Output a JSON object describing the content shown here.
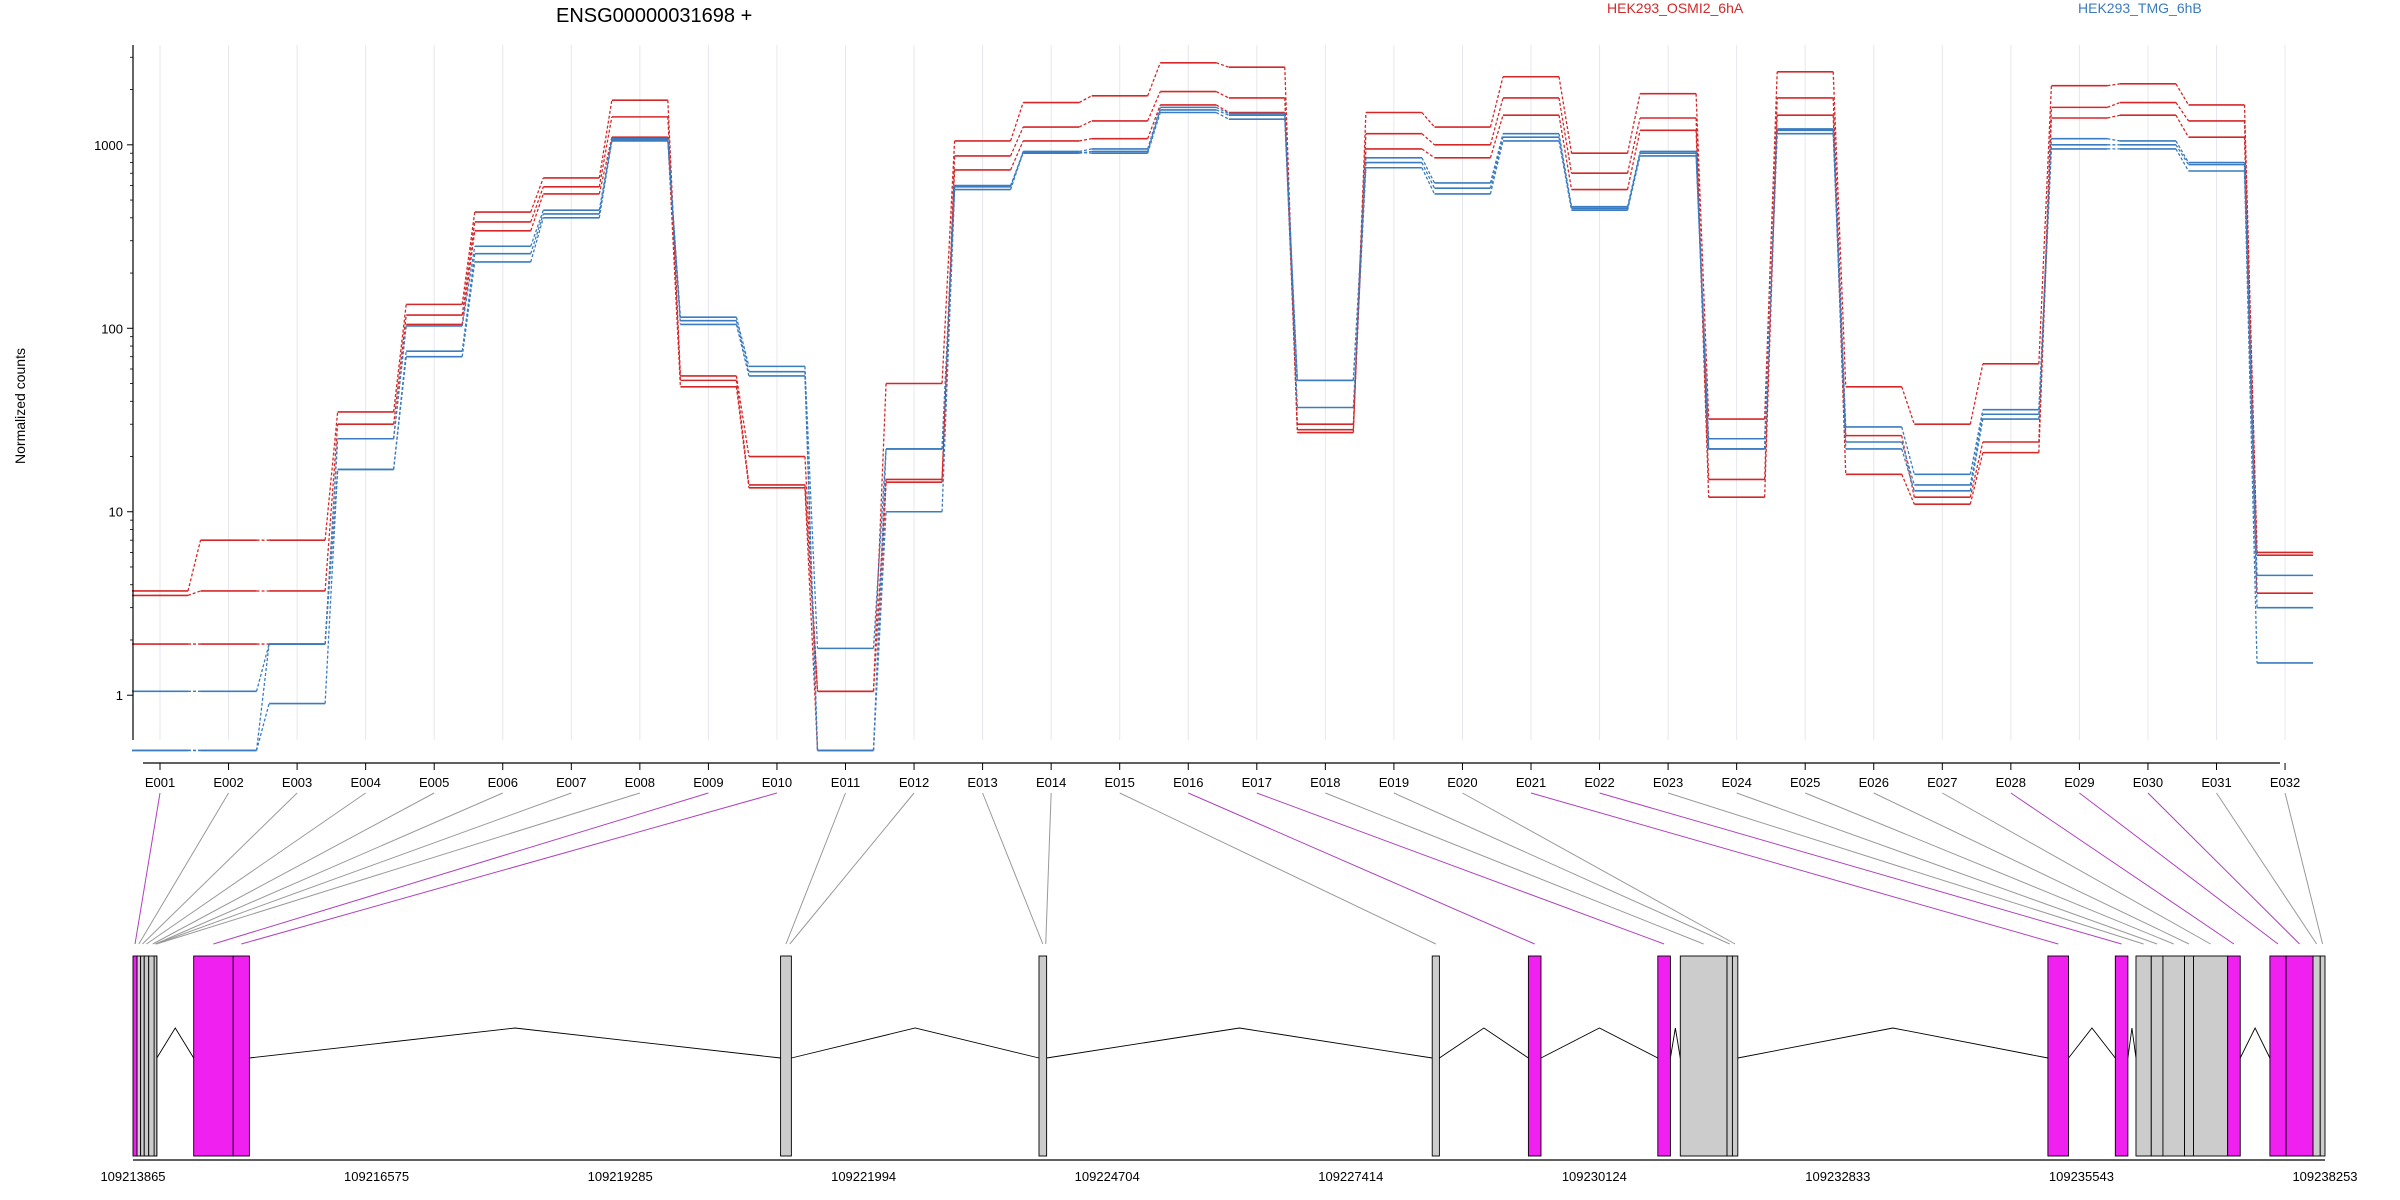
{
  "chart_data": {
    "type": "line",
    "title": "ENSG00000031698 +",
    "ylabel": "Normalized counts",
    "yscale": "log",
    "ylim": [
      0.5,
      3500
    ],
    "yticks": [
      "1",
      "10",
      "100",
      "1000"
    ],
    "ytick_values": [
      1,
      10,
      100,
      1000
    ],
    "legend_placement": "top",
    "categories": [
      "E001",
      "E002",
      "E003",
      "E004",
      "E005",
      "E006",
      "E007",
      "E008",
      "E009",
      "E010",
      "E011",
      "E012",
      "E013",
      "E014",
      "E015",
      "E016",
      "E017",
      "E018",
      "E019",
      "E020",
      "E021",
      "E022",
      "E023",
      "E024",
      "E025",
      "E026",
      "E027",
      "E028",
      "E029",
      "E030",
      "E031",
      "E032"
    ],
    "groups": [
      {
        "name": "HEK293_OSMI2_6hA",
        "color": "#d62728"
      },
      {
        "name": "HEK293_TMG_6hB",
        "color": "#3a7cbf"
      }
    ],
    "series": [
      {
        "group": 0,
        "values": [
          3.7,
          7,
          7,
          35,
          135,
          430,
          660,
          1750,
          55,
          20,
          1.05,
          50,
          1050,
          1700,
          1850,
          2800,
          2650,
          27,
          1500,
          1250,
          2350,
          900,
          1900,
          32,
          2500,
          48,
          30,
          64,
          2100,
          2150,
          1650,
          6.0
        ]
      },
      {
        "group": 0,
        "values": [
          3.5,
          3.7,
          3.7,
          30,
          118,
          380,
          590,
          1420,
          52,
          14,
          1.05,
          15,
          870,
          1250,
          1350,
          1950,
          1800,
          28,
          1150,
          1000,
          1800,
          700,
          1400,
          15,
          1800,
          26,
          12,
          24,
          1600,
          1700,
          1350,
          5.8
        ]
      },
      {
        "group": 0,
        "values": [
          1.9,
          1.9,
          1.9,
          25,
          105,
          340,
          540,
          1100,
          48,
          13.5,
          0.5,
          14.5,
          730,
          1050,
          1080,
          1650,
          1500,
          30,
          950,
          850,
          1450,
          570,
          1200,
          12,
          1450,
          16,
          11,
          21,
          1400,
          1450,
          1100,
          3.6
        ]
      },
      {
        "group": 1,
        "values": [
          1.05,
          1.05,
          1.9,
          17,
          70,
          230,
          400,
          1050,
          115,
          62,
          1.8,
          22,
          600,
          900,
          920,
          1550,
          1450,
          52,
          850,
          620,
          1150,
          460,
          920,
          25,
          1220,
          29,
          16,
          36,
          1080,
          1050,
          800,
          4.5
        ]
      },
      {
        "group": 1,
        "values": [
          0.5,
          0.5,
          0.9,
          17,
          75,
          255,
          420,
          1060,
          110,
          58,
          0.5,
          22,
          590,
          920,
          950,
          1600,
          1480,
          52,
          800,
          580,
          1100,
          450,
          900,
          22,
          1200,
          24,
          14,
          34,
          1000,
          1000,
          780,
          3.0
        ]
      },
      {
        "group": 1,
        "values": [
          0.5,
          0.5,
          1.9,
          25,
          103,
          280,
          440,
          1080,
          105,
          55,
          0.5,
          10,
          570,
          910,
          900,
          1500,
          1380,
          37,
          750,
          540,
          1050,
          440,
          870,
          22,
          1150,
          22,
          13,
          32,
          950,
          950,
          720,
          1.5
        ]
      }
    ],
    "gene_model": {
      "coord_labels": [
        "109213865",
        "109216575",
        "109219285",
        "109221994",
        "109224704",
        "109227414",
        "109230124",
        "109232833",
        "109235543",
        "109238253"
      ],
      "coord_values": [
        109213865,
        109216575,
        109219285,
        109221994,
        109224704,
        109227414,
        109230124,
        109232833,
        109235543,
        109238253
      ],
      "highlight_color": "#f020f0",
      "exon_color": "#cccccc",
      "exons": [
        {
          "start": 109213865,
          "end": 109213910,
          "highlight": true
        },
        {
          "start": 109213910,
          "end": 109213950,
          "highlight": false
        },
        {
          "start": 109213950,
          "end": 109213990,
          "highlight": false
        },
        {
          "start": 109213990,
          "end": 109214040,
          "highlight": false
        },
        {
          "start": 109214040,
          "end": 109214130,
          "highlight": false
        },
        {
          "start": 109214130,
          "end": 109214100,
          "highlight": false
        },
        {
          "start": 109214100,
          "end": 109214130,
          "highlight": false
        },
        {
          "start": 109214130,
          "end": 109214123,
          "highlight": false
        },
        {
          "start": 109214540,
          "end": 109214980,
          "highlight": true
        },
        {
          "start": 109214980,
          "end": 109215160,
          "highlight": true
        },
        {
          "start": 109221070,
          "end": 109221190,
          "highlight": false
        },
        {
          "start": 109221190,
          "end": 109221155,
          "highlight": false
        },
        {
          "start": 109223945,
          "end": 109224030,
          "highlight": false
        },
        {
          "start": 109224030,
          "end": 109224010,
          "highlight": false
        },
        {
          "start": 109228320,
          "end": 109228400,
          "highlight": false
        },
        {
          "start": 109229390,
          "end": 109229530,
          "highlight": true
        },
        {
          "start": 109230830,
          "end": 109230970,
          "highlight": true
        },
        {
          "start": 109231080,
          "end": 109231600,
          "highlight": false
        },
        {
          "start": 109231600,
          "end": 109231660,
          "highlight": false
        },
        {
          "start": 109231660,
          "end": 109231720,
          "highlight": false
        },
        {
          "start": 109235170,
          "end": 109235400,
          "highlight": true
        },
        {
          "start": 109235920,
          "end": 109236060,
          "highlight": true
        },
        {
          "start": 109236150,
          "end": 109236320,
          "highlight": false
        },
        {
          "start": 109236320,
          "end": 109236450,
          "highlight": false
        },
        {
          "start": 109236450,
          "end": 109236690,
          "highlight": false
        },
        {
          "start": 109236690,
          "end": 109236790,
          "highlight": false
        },
        {
          "start": 109236790,
          "end": 109237170,
          "highlight": false
        },
        {
          "start": 109237170,
          "end": 109237310,
          "highlight": true
        },
        {
          "start": 109237640,
          "end": 109237820,
          "highlight": true
        },
        {
          "start": 109237820,
          "end": 109238120,
          "highlight": true
        },
        {
          "start": 109238120,
          "end": 109238200,
          "highlight": false
        },
        {
          "start": 109238200,
          "end": 109238253,
          "highlight": false
        }
      ]
    }
  }
}
